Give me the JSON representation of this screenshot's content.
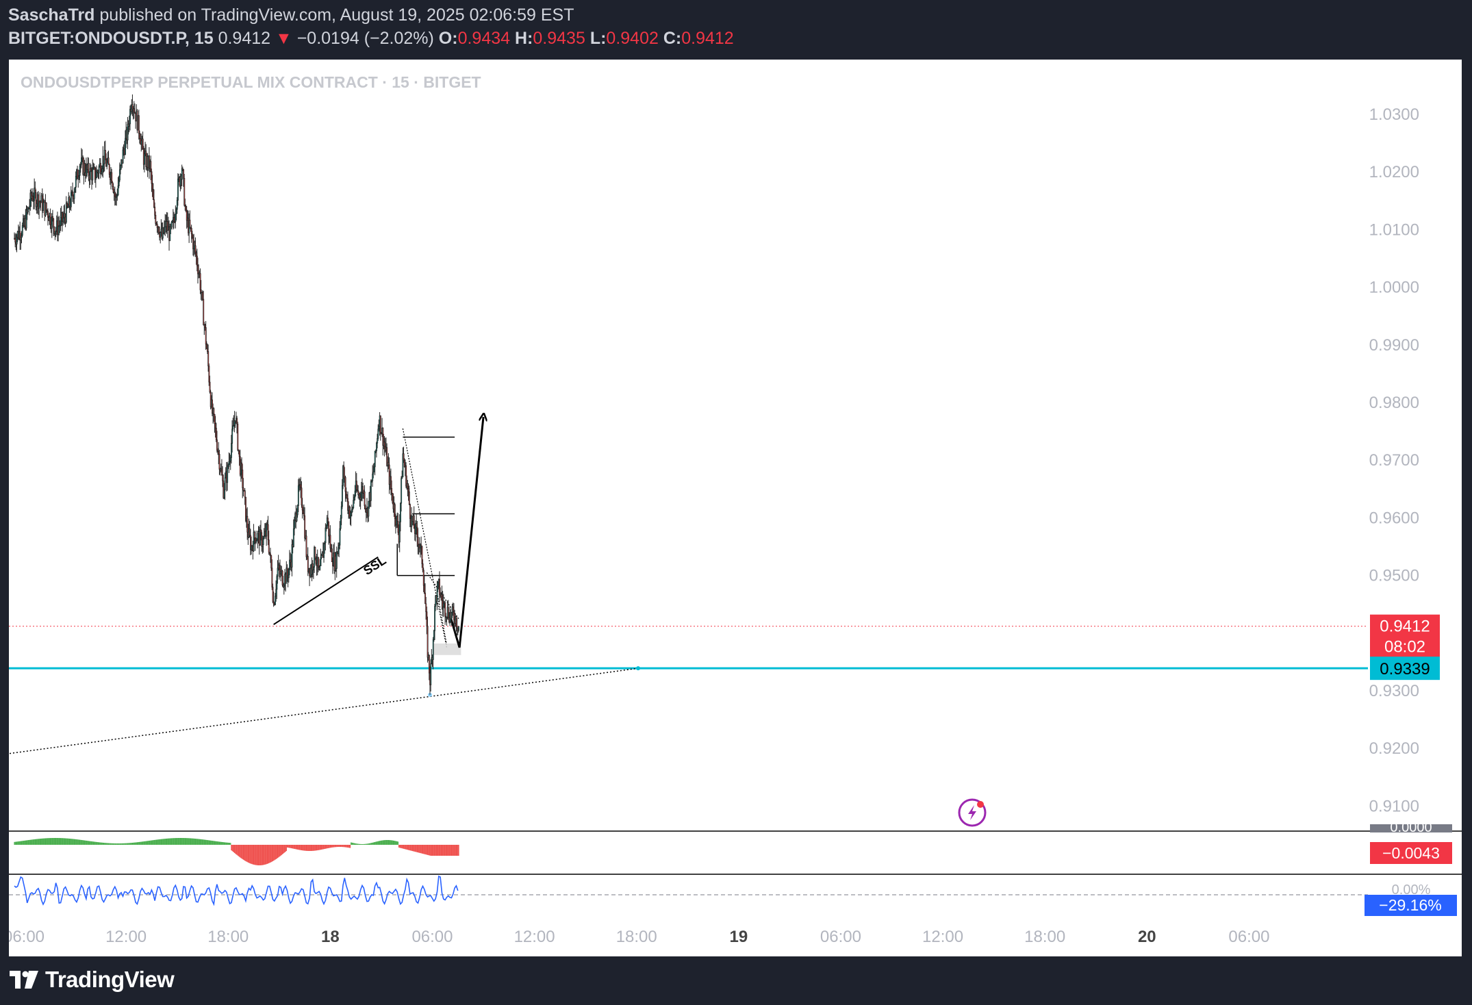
{
  "header": {
    "author": "SaschaTrd",
    "published_text": "published on TradingView.com, August 19, 2025 02:06:59 EST",
    "symbol": "BITGET:ONDOUSDT.P, 15",
    "last": "0.9412",
    "change_arrow": "▼",
    "change": "−0.0194 (−2.02%)",
    "open_label": "O:",
    "open": "0.9434",
    "high_label": "H:",
    "high": "0.9435",
    "low_label": "L:",
    "low": "0.9402",
    "close_label": "C:",
    "close": "0.9412"
  },
  "footer": {
    "brand": "TradingView",
    "logo_icon": "tradingview-logo-icon"
  },
  "colors": {
    "up": "#26a69a",
    "down": "#ef5350",
    "cyan": "#00bcd4",
    "price_badge": "#f23645",
    "macd_up": "#4caf50",
    "macd_down": "#ef5350",
    "rsi": "#2962ff"
  },
  "chart_data": {
    "type": "candlestick",
    "title": "ONDOUSDTPERP PERPETUAL MIX CONTRACT · 15 · BITGET",
    "interval": "15",
    "y_ticks": [
      "1.0300",
      "1.0200",
      "1.0100",
      "1.0000",
      "0.9900",
      "0.9800",
      "0.9700",
      "0.9600",
      "0.9500",
      "0.9300",
      "0.9200",
      "0.9100"
    ],
    "ylim": [
      0.9072,
      1.0393
    ],
    "x_ticks": [
      "06:00",
      "12:00",
      "18:00",
      "18",
      "06:00",
      "12:00",
      "18:00",
      "19",
      "06:00",
      "12:00",
      "18:00",
      "20",
      "06:00"
    ],
    "price_path": [
      [
        -30,
        1.0065
      ],
      [
        -15,
        1.008
      ],
      [
        0,
        1.0105
      ],
      [
        10,
        1.016
      ],
      [
        20,
        1.015
      ],
      [
        30,
        1.013
      ],
      [
        40,
        1.01
      ],
      [
        50,
        1.012
      ],
      [
        60,
        1.0155
      ],
      [
        70,
        1.0215
      ],
      [
        80,
        1.02
      ],
      [
        90,
        1.0195
      ],
      [
        100,
        1.0225
      ],
      [
        105,
        1.021
      ],
      [
        110,
        1.0195
      ],
      [
        115,
        1.015
      ],
      [
        120,
        1.0195
      ],
      [
        125,
        1.024
      ],
      [
        130,
        1.027
      ],
      [
        135,
        1.033
      ],
      [
        140,
        1.03
      ],
      [
        145,
        1.027
      ],
      [
        150,
        1.0225
      ],
      [
        158,
        1.021
      ],
      [
        163,
        1.013
      ],
      [
        168,
        1.011
      ],
      [
        173,
        1.0085
      ],
      [
        178,
        1.011
      ],
      [
        183,
        1.009
      ],
      [
        188,
        1.0115
      ],
      [
        193,
        1.0175
      ],
      [
        198,
        1.021
      ],
      [
        203,
        1.012
      ],
      [
        210,
        1.009
      ],
      [
        215,
        1.006
      ],
      [
        220,
        1.002
      ],
      [
        225,
        0.995
      ],
      [
        230,
        0.988
      ],
      [
        235,
        0.979
      ],
      [
        240,
        0.975
      ],
      [
        245,
        0.97
      ],
      [
        250,
        0.965
      ],
      [
        255,
        0.968
      ],
      [
        260,
        0.973
      ],
      [
        265,
        0.978
      ],
      [
        270,
        0.97
      ],
      [
        275,
        0.965
      ],
      [
        280,
        0.958
      ],
      [
        285,
        0.955
      ],
      [
        290,
        0.957
      ],
      [
        300,
        0.956
      ],
      [
        305,
        0.958
      ],
      [
        310,
        0.951
      ],
      [
        313,
        0.945
      ],
      [
        318,
        0.951
      ],
      [
        325,
        0.9495
      ],
      [
        330,
        0.95
      ],
      [
        335,
        0.953
      ],
      [
        340,
        0.96
      ],
      [
        345,
        0.965
      ],
      [
        350,
        0.962
      ],
      [
        355,
        0.952
      ],
      [
        360,
        0.951
      ],
      [
        365,
        0.954
      ],
      [
        370,
        0.95
      ],
      [
        375,
        0.954
      ],
      [
        380,
        0.96
      ],
      [
        385,
        0.954
      ],
      [
        390,
        0.952
      ],
      [
        395,
        0.956
      ],
      [
        400,
        0.968
      ],
      [
        405,
        0.963
      ],
      [
        410,
        0.96
      ],
      [
        415,
        0.965
      ],
      [
        420,
        0.964
      ],
      [
        425,
        0.965
      ],
      [
        430,
        0.961
      ],
      [
        435,
        0.965
      ],
      [
        440,
        0.97
      ],
      [
        445,
        0.9775
      ],
      [
        450,
        0.974
      ],
      [
        455,
        0.97
      ],
      [
        460,
        0.965
      ],
      [
        465,
        0.961
      ],
      [
        470,
        0.957
      ],
      [
        475,
        0.971
      ],
      [
        480,
        0.966
      ],
      [
        485,
        0.96
      ],
      [
        490,
        0.958
      ],
      [
        495,
        0.956
      ],
      [
        500,
        0.952
      ],
      [
        503,
        0.945
      ],
      [
        506,
        0.937
      ],
      [
        509,
        0.932
      ],
      [
        512,
        0.937
      ],
      [
        516,
        0.946
      ],
      [
        520,
        0.948
      ],
      [
        525,
        0.945
      ],
      [
        530,
        0.944
      ],
      [
        535,
        0.943
      ],
      [
        540,
        0.943
      ],
      [
        545,
        0.9412
      ]
    ],
    "current_price": "0.9412",
    "countdown": "08:02",
    "cyan_level": "0.9339",
    "ssl_label": "SSL",
    "macd_value": "−0.0043",
    "macd_zero_label": "0.0000",
    "rsi_value": "−29.16%",
    "rsi_zero_label": "0.00%",
    "overlays": {
      "ssl_trendline": [
        [
          313,
          0.9415
        ],
        [
          444,
          0.9532
        ]
      ],
      "lower_dotted_trendline": [
        [
          -35,
          0.9188
        ],
        [
          770,
          0.9339
        ]
      ],
      "horizontal_levels": [
        {
          "from": 475,
          "to": 540,
          "price": 0.974
        },
        {
          "from": 487,
          "to": 540,
          "price": 0.9607
        },
        {
          "from": 468,
          "to": 540,
          "price": 0.95
        }
      ],
      "zone": {
        "from": 514,
        "to": 548,
        "high": 0.9382,
        "low": 0.9362
      },
      "projection_arrow": [
        [
          535,
          0.9427
        ],
        [
          546,
          0.9375
        ],
        [
          576,
          0.9775
        ]
      ]
    }
  }
}
